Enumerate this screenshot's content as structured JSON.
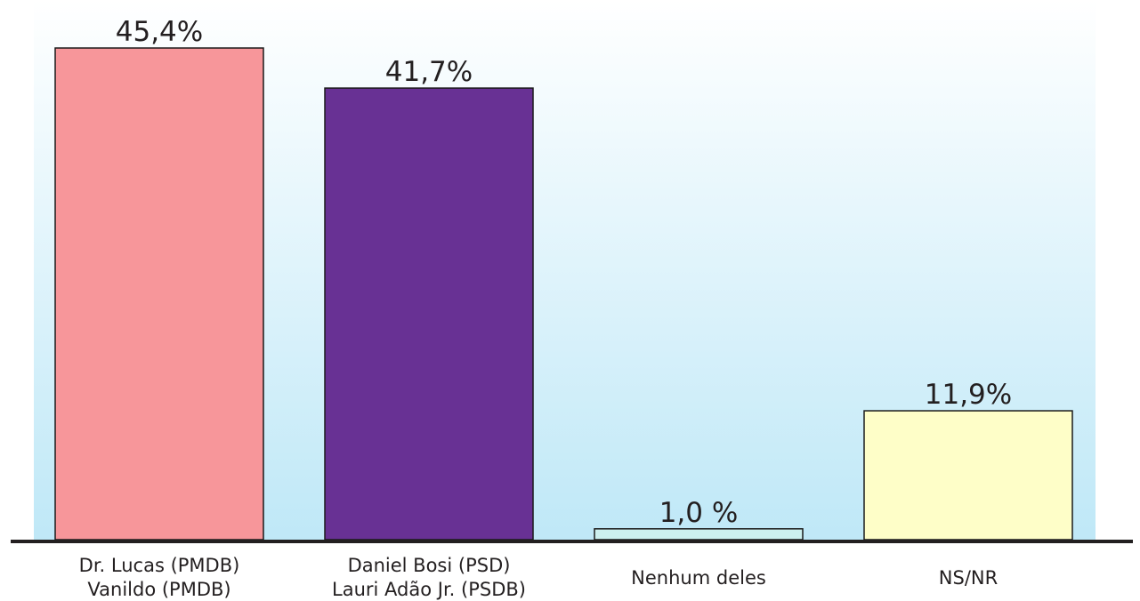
{
  "chart_data": {
    "type": "bar",
    "categories": [
      [
        "Dr. Lucas (PMDB)",
        "Vanildo (PMDB)"
      ],
      [
        "Daniel Bosi (PSD)",
        "Lauri Adão Jr. (PSDB)"
      ],
      [
        "Nenhum deles"
      ],
      [
        "NS/NR"
      ]
    ],
    "values": [
      45.4,
      41.7,
      1.0,
      11.9
    ],
    "value_labels": [
      "45,4%",
      "41,7%",
      "1,0 %",
      "11,9%"
    ],
    "bar_colors": [
      "#f7969a",
      "#683194",
      "#cdf0ef",
      "#fefec8"
    ],
    "title": "",
    "xlabel": "",
    "ylabel": "",
    "ylim": [
      0,
      45.4
    ],
    "grid": false,
    "legend": "none"
  },
  "colors": {
    "background_top": "#ffffff",
    "background_bottom": "#bfe8f7",
    "baseline": "#231f20",
    "bar_stroke": "#1a1a1a"
  }
}
